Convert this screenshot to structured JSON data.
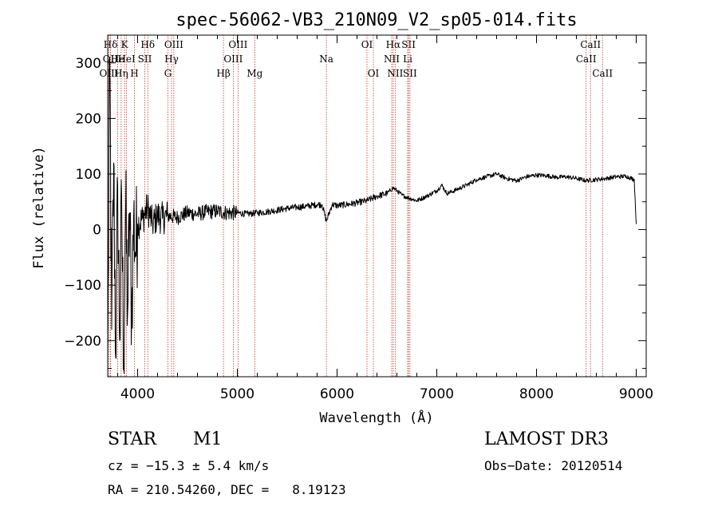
{
  "chart_data": {
    "type": "line",
    "title": "spec-56062-VB3_210N09_V2_sp05-014.fits",
    "xlabel": "Wavelength (Å)",
    "ylabel": "Flux (relative)",
    "xlim": [
      3700,
      9100
    ],
    "ylim": [
      -265,
      350
    ],
    "xticks": [
      4000,
      5000,
      6000,
      7000,
      8000,
      9000
    ],
    "yticks": [
      -200,
      -100,
      0,
      100,
      200,
      300
    ],
    "series": [
      {
        "name": "flux",
        "color": "#000000",
        "x": [
          3700,
          3720,
          3740,
          3760,
          3780,
          3800,
          3820,
          3840,
          3860,
          3880,
          3900,
          3920,
          3940,
          3960,
          3980,
          4000,
          4050,
          4100,
          4150,
          4200,
          4250,
          4300,
          4400,
          4500,
          4600,
          4700,
          4800,
          4900,
          5000,
          5100,
          5200,
          5300,
          5400,
          5500,
          5600,
          5700,
          5800,
          5850,
          5893,
          5950,
          6000,
          6100,
          6200,
          6300,
          6400,
          6500,
          6563,
          6600,
          6650,
          6700,
          6750,
          6800,
          6900,
          7000,
          7050,
          7100,
          7150,
          7200,
          7300,
          7400,
          7500,
          7600,
          7700,
          7800,
          7900,
          8000,
          8100,
          8200,
          8300,
          8400,
          8500,
          8600,
          8700,
          8800,
          8900,
          8980,
          9000
        ],
        "y": [
          -250,
          310,
          -180,
          120,
          -230,
          80,
          -200,
          60,
          -240,
          40,
          -150,
          30,
          -160,
          20,
          -40,
          10,
          20,
          40,
          10,
          25,
          20,
          25,
          22,
          30,
          28,
          32,
          33,
          30,
          30,
          28,
          30,
          32,
          35,
          38,
          40,
          42,
          45,
          45,
          15,
          45,
          43,
          45,
          48,
          52,
          60,
          65,
          75,
          70,
          62,
          58,
          55,
          52,
          60,
          70,
          80,
          65,
          68,
          72,
          80,
          90,
          95,
          100,
          92,
          88,
          95,
          98,
          97,
          94,
          95,
          92,
          88,
          90,
          92,
          95,
          96,
          90,
          10
        ]
      }
    ],
    "line_annotations": [
      {
        "label": "Hδ",
        "wavelength": 3729,
        "row": 0
      },
      {
        "label": "OII",
        "wavelength": 3727,
        "row": 1
      },
      {
        "label": "OIII",
        "wavelength": 3712,
        "row": 2
      },
      {
        "label": "He",
        "wavelength": 3800,
        "row": 1
      },
      {
        "label": "Hη",
        "wavelength": 3835,
        "row": 2
      },
      {
        "label": "K",
        "wavelength": 3869,
        "row": 0
      },
      {
        "label": "HeI",
        "wavelength": 3889,
        "row": 1
      },
      {
        "label": "H",
        "wavelength": 3968,
        "row": 2
      },
      {
        "label": "SII",
        "wavelength": 4072,
        "row": 1
      },
      {
        "label": "Hδ",
        "wavelength": 4102,
        "row": 0
      },
      {
        "label": "OIII",
        "wavelength": 4363,
        "row": 0
      },
      {
        "label": "Hγ",
        "wavelength": 4340,
        "row": 1
      },
      {
        "label": "G",
        "wavelength": 4304,
        "row": 2
      },
      {
        "label": "Hβ",
        "wavelength": 4861,
        "row": 2
      },
      {
        "label": "OIII",
        "wavelength": 4959,
        "row": 1
      },
      {
        "label": "OIII",
        "wavelength": 5007,
        "row": 0
      },
      {
        "label": "Mg",
        "wavelength": 5175,
        "row": 2
      },
      {
        "label": "Na",
        "wavelength": 5893,
        "row": 1
      },
      {
        "label": "OI",
        "wavelength": 6300,
        "row": 0
      },
      {
        "label": "OI",
        "wavelength": 6364,
        "row": 2
      },
      {
        "label": "Hα",
        "wavelength": 6563,
        "row": 0
      },
      {
        "label": "NII",
        "wavelength": 6548,
        "row": 1
      },
      {
        "label": "NII",
        "wavelength": 6583,
        "row": 2
      },
      {
        "label": "SII",
        "wavelength": 6717,
        "row": 0
      },
      {
        "label": "Li",
        "wavelength": 6708,
        "row": 1
      },
      {
        "label": "SII",
        "wavelength": 6731,
        "row": 2
      },
      {
        "label": "CaII",
        "wavelength": 8542,
        "row": 0
      },
      {
        "label": "CaII",
        "wavelength": 8498,
        "row": 1
      },
      {
        "label": "CaII",
        "wavelength": 8662,
        "row": 2
      }
    ]
  },
  "info": {
    "object_class": "STAR",
    "subclass": "M1",
    "survey": "LAMOST DR3",
    "redshift_line": "cz = −15.3 ± 5.4 km/s",
    "obs_date": "Obs−Date: 20120514",
    "coords": "RA = 210.54260, DEC =   8.19123"
  },
  "colors": {
    "axis": "#000000",
    "spectrum": "#000000",
    "line_markers": "#c0392b"
  }
}
